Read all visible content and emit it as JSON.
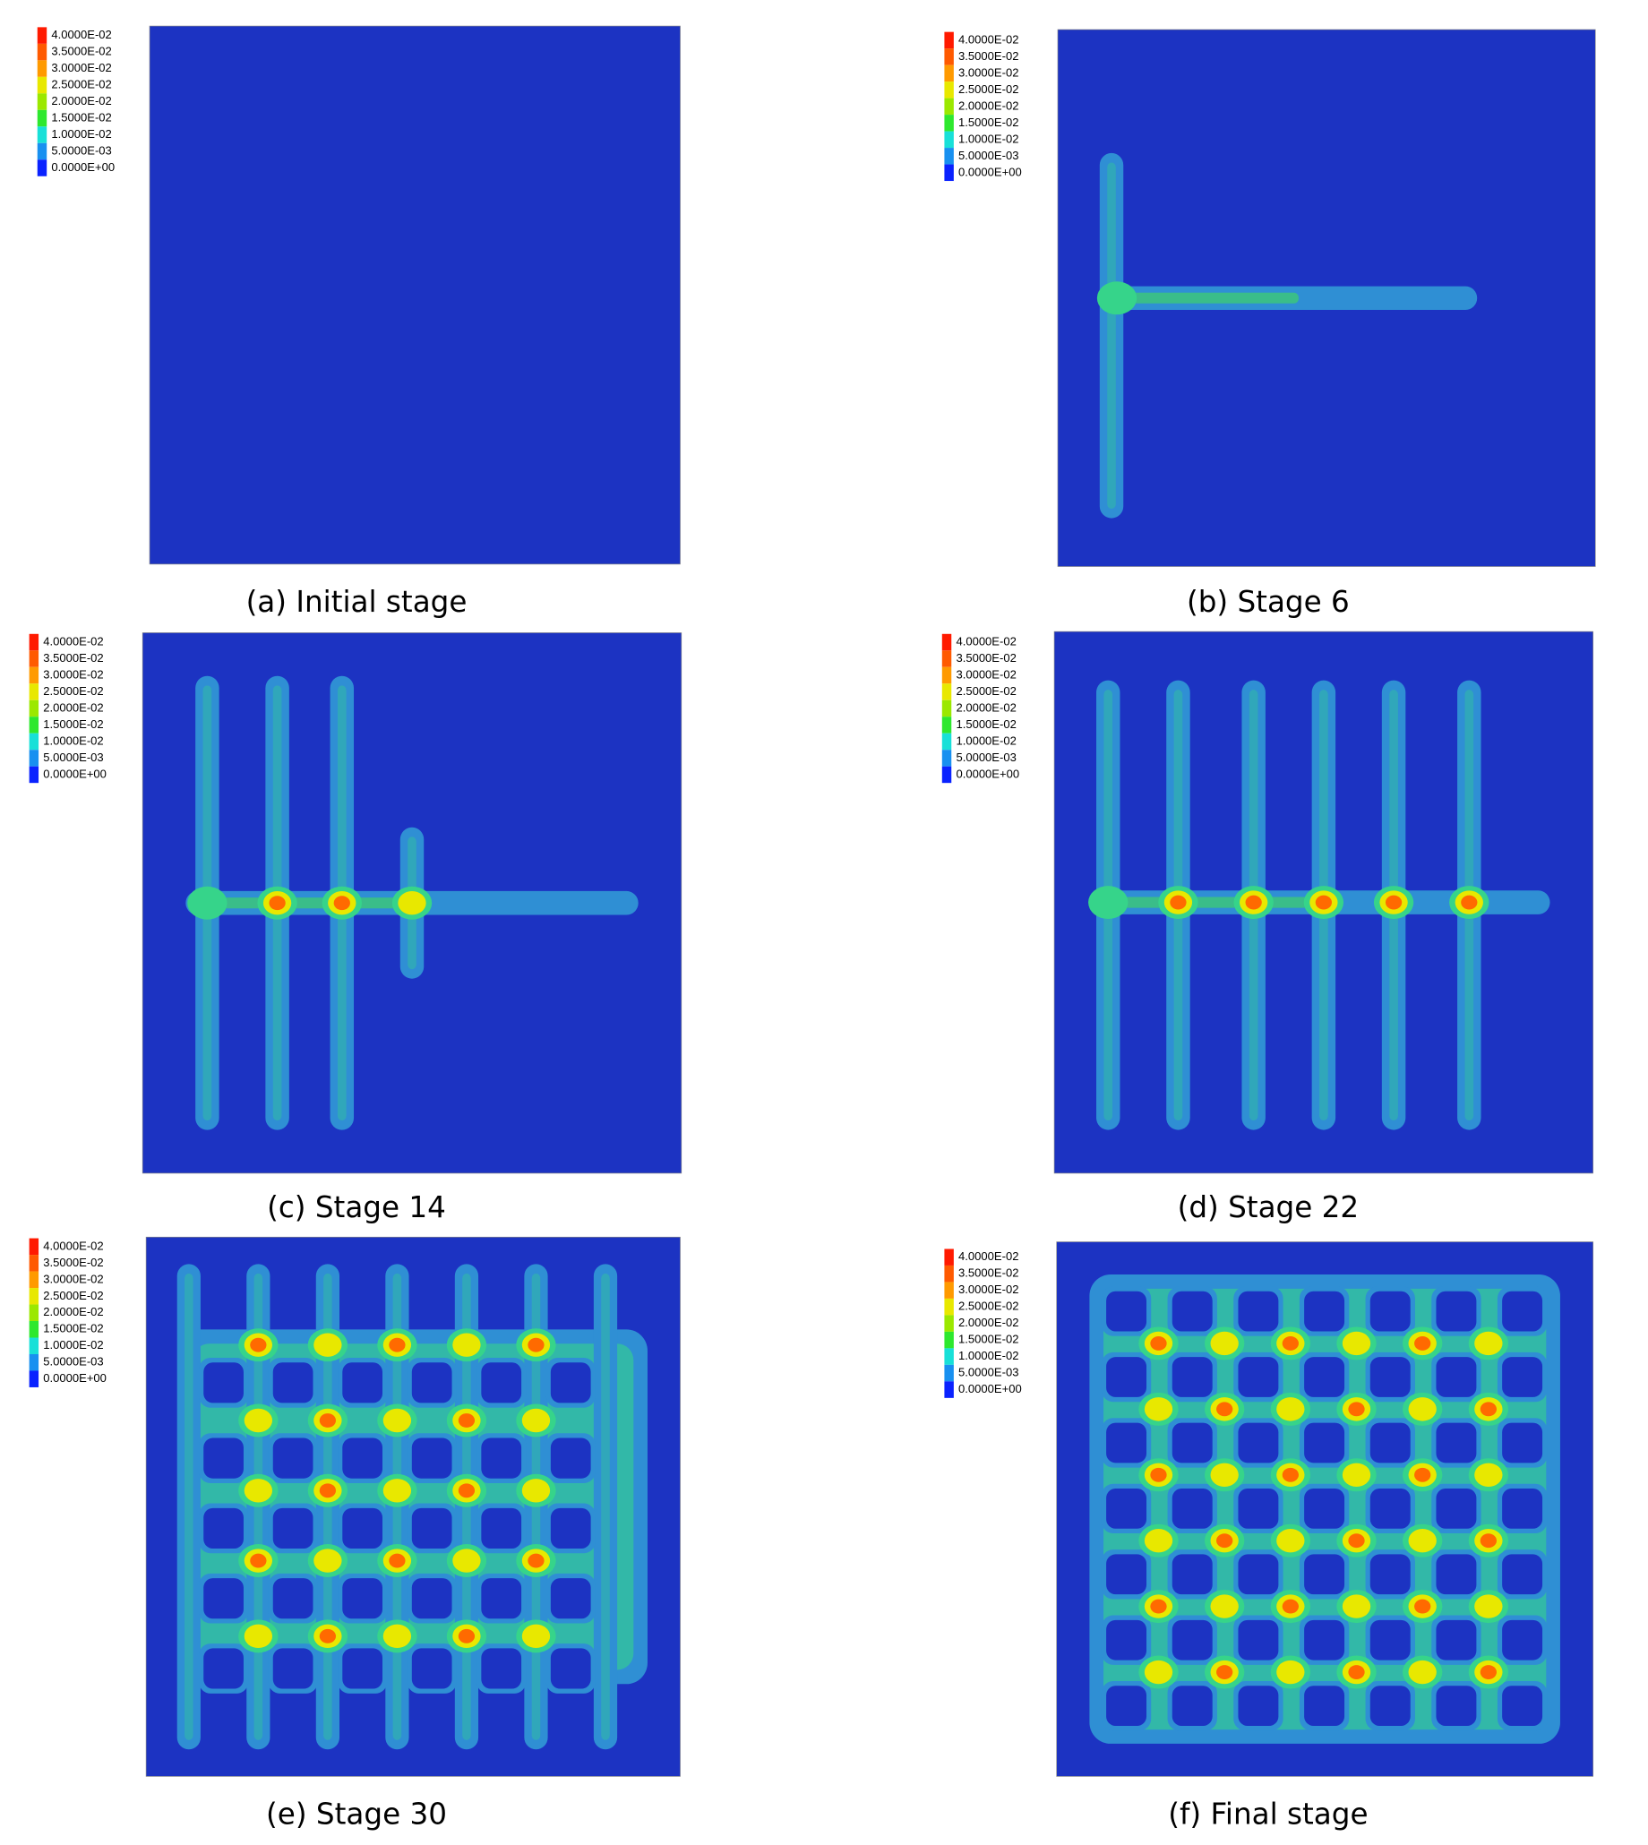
{
  "panels": [
    {
      "caption": "(a) Initial stage",
      "legend": [
        "4.0000E-02",
        "3.5000E-02",
        "3.0000E-02",
        "2.5000E-02",
        "2.0000E-02",
        "1.5000E-02",
        "1.0000E-02",
        "5.0000E-03",
        "0.0000E+00"
      ]
    },
    {
      "caption": "(b) Stage 6",
      "legend": [
        "4.0000E-02",
        "3.5000E-02",
        "3.0000E-02",
        "2.5000E-02",
        "2.0000E-02",
        "1.5000E-02",
        "1.0000E-02",
        "5.0000E-03",
        "0.0000E+00"
      ]
    },
    {
      "caption": "(c) Stage 14",
      "legend": [
        "4.0000E-02",
        "3.5000E-02",
        "3.0000E-02",
        "2.5000E-02",
        "2.0000E-02",
        "1.5000E-02",
        "1.0000E-02",
        "5.0000E-03",
        "0.0000E+00"
      ]
    },
    {
      "caption": "(d) Stage 22",
      "legend": [
        "4.0000E-02",
        "3.5000E-02",
        "3.0000E-02",
        "2.5000E-02",
        "2.0000E-02",
        "1.5000E-02",
        "1.0000E-02",
        "5.0000E-03",
        "0.0000E+00"
      ]
    },
    {
      "caption": "(e) Stage 30",
      "legend": [
        "4.0000E-02",
        "3.5000E-02",
        "3.0000E-02",
        "2.5000E-02",
        "2.0000E-02",
        "1.5000E-02",
        "1.0000E-02",
        "5.0000E-03",
        "0.0000E+00"
      ]
    },
    {
      "caption": "(f) Final stage",
      "legend": [
        "4.0000E-02",
        "3.5000E-02",
        "3.0000E-02",
        "2.5000E-02",
        "2.0000E-02",
        "1.5000E-02",
        "1.0000E-02",
        "5.0000E-03",
        "0.0000E+00"
      ]
    }
  ]
}
